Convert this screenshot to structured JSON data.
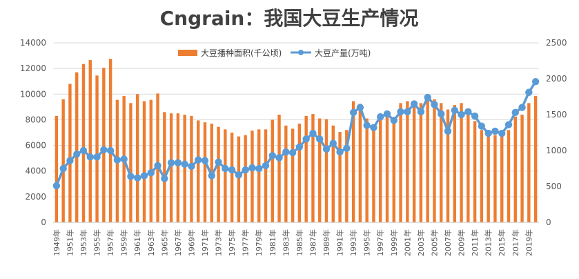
{
  "chart_data": {
    "type": "bar",
    "title": "Cngrain：我国大豆生产情况",
    "x": [
      "1949年",
      "1950年",
      "1951年",
      "1952年",
      "1953年",
      "1954年",
      "1955年",
      "1956年",
      "1957年",
      "1958年",
      "1959年",
      "1960年",
      "1961年",
      "1962年",
      "1963年",
      "1964年",
      "1965年",
      "1966年",
      "1967年",
      "1968年",
      "1969年",
      "1970年",
      "1971年",
      "1972年",
      "1973年",
      "1974年",
      "1975年",
      "1976年",
      "1977年",
      "1978年",
      "1979年",
      "1980年",
      "1981年",
      "1982年",
      "1983年",
      "1984年",
      "1985年",
      "1986年",
      "1987年",
      "1988年",
      "1989年",
      "1990年",
      "1991年",
      "1992年",
      "1993年",
      "1994年",
      "1995年",
      "1996年",
      "1997年",
      "1998年",
      "1999年",
      "2000年",
      "2001年",
      "2002年",
      "2003年",
      "2004年",
      "2005年",
      "2006年",
      "2007年",
      "2008年",
      "2009年",
      "2010年",
      "2011年",
      "2012年",
      "2013年",
      "2014年",
      "2015年",
      "2016年",
      "2017年",
      "2018年",
      "2019年",
      "2020年"
    ],
    "x_tick_labels": [
      "1949年",
      "1951年",
      "1953年",
      "1955年",
      "1957年",
      "1959年",
      "1961年",
      "1963年",
      "1965年",
      "1967年",
      "1969年",
      "1971年",
      "1973年",
      "1975年",
      "1977年",
      "1979年",
      "1981年",
      "1983年",
      "1985年",
      "1987年",
      "1989年",
      "1991年",
      "1993年",
      "1995年",
      "1997年",
      "1999年",
      "2001年",
      "2003年",
      "2005年",
      "2007年",
      "2009年",
      "2011年",
      "2013年",
      "2015年",
      "2017年",
      "2019年"
    ],
    "series": [
      {
        "name": "大豆播种面积(千公顷)",
        "type": "bar",
        "axis": "left",
        "color": "#ED7D31",
        "values": [
          8300,
          9600,
          10800,
          11700,
          12350,
          12650,
          11450,
          12050,
          12750,
          9550,
          9850,
          9300,
          10000,
          9450,
          9550,
          10050,
          8600,
          8500,
          8500,
          8400,
          8300,
          7950,
          7800,
          7700,
          7450,
          7250,
          7000,
          6700,
          6800,
          7150,
          7250,
          7250,
          8000,
          8400,
          7550,
          7300,
          7700,
          8300,
          8450,
          8100,
          8050,
          7550,
          7050,
          7200,
          9450,
          9250,
          8100,
          7450,
          8350,
          8500,
          7950,
          9300,
          9450,
          9500,
          9300,
          9550,
          9600,
          9300,
          8800,
          9150,
          9300,
          8500,
          7900,
          7200,
          6800,
          6800,
          6750,
          7200,
          8250,
          8400,
          9300,
          9850
        ]
      },
      {
        "name": "大豆产量(万吨)",
        "type": "line",
        "axis": "right",
        "color": "#5B9BD5",
        "values": [
          510,
          750,
          860,
          950,
          1000,
          910,
          910,
          1010,
          1000,
          870,
          880,
          640,
          620,
          650,
          690,
          790,
          610,
          830,
          830,
          810,
          780,
          870,
          860,
          650,
          840,
          750,
          730,
          660,
          730,
          760,
          750,
          790,
          930,
          900,
          980,
          970,
          1050,
          1160,
          1240,
          1160,
          1020,
          1100,
          980,
          1030,
          1530,
          1600,
          1350,
          1320,
          1470,
          1510,
          1420,
          1540,
          1540,
          1650,
          1540,
          1740,
          1640,
          1510,
          1270,
          1560,
          1500,
          1540,
          1480,
          1340,
          1240,
          1270,
          1240,
          1360,
          1530,
          1600,
          1810,
          1960
        ]
      }
    ],
    "y_left": {
      "min": 0,
      "max": 14000,
      "step": 2000,
      "ticks": [
        "0",
        "2000",
        "4000",
        "6000",
        "8000",
        "10000",
        "12000",
        "14000"
      ]
    },
    "y_right": {
      "min": 0,
      "max": 2500,
      "step": 500,
      "ticks": [
        "0",
        "500",
        "1000",
        "1500",
        "2000",
        "2500"
      ]
    },
    "grid": true,
    "legend": "top"
  }
}
